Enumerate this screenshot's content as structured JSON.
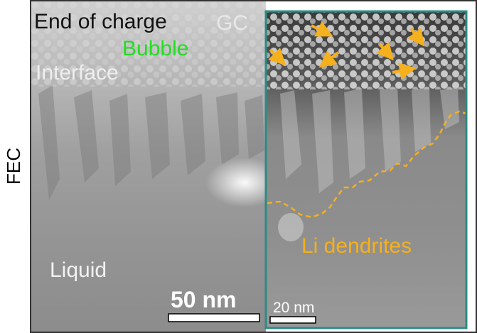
{
  "side_label": "FEC",
  "labels": {
    "end_of_charge": "End of charge",
    "gc": "GC",
    "bubble": "Bubble",
    "interface": "Interface",
    "liquid": "Liquid",
    "li_dendrites": "Li dendrites"
  },
  "scale_bars": {
    "main": "50 nm",
    "inset": "20 nm"
  },
  "colors": {
    "inset_border": "#2a8c84",
    "dendrite_outline": "#f5b01e",
    "arrows": "#f5b01e",
    "bubble": "#22dd22"
  }
}
